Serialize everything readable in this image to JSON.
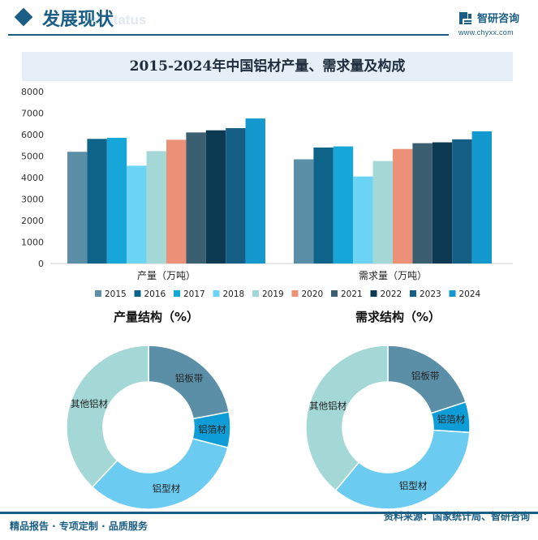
{
  "header": {
    "title": "发展现状",
    "subtitle": "ent status",
    "brand_name": "智研咨询",
    "brand_url": "www.chyxx.com"
  },
  "colors": {
    "brand": "#1a5e85",
    "banner": "#e6eef7"
  },
  "footer": {
    "left": "精品报告 · 专项定制 · 品质服务",
    "right": "资料来源：国家统计局、智研咨询"
  },
  "chart_data": [
    {
      "type": "bar",
      "title": "2015-2024年中国铝材产量、需求量及构成",
      "categories": [
        "产量（万吨）",
        "需求量（万吨）"
      ],
      "ylim": [
        0,
        8000
      ],
      "yticks": [
        0,
        1000,
        2000,
        3000,
        4000,
        5000,
        6000,
        7000,
        8000
      ],
      "grid": false,
      "legend_position": "bottom",
      "series": [
        {
          "name": "2015",
          "color": "#5b8fa8",
          "values": [
            5200,
            4850
          ]
        },
        {
          "name": "2016",
          "color": "#0e6389",
          "values": [
            5800,
            5400
          ]
        },
        {
          "name": "2017",
          "color": "#16a6d8",
          "values": [
            5850,
            5450
          ]
        },
        {
          "name": "2018",
          "color": "#6bd3f3",
          "values": [
            4550,
            4050
          ]
        },
        {
          "name": "2019",
          "color": "#a4d8d6",
          "values": [
            5230,
            4770
          ]
        },
        {
          "name": "2020",
          "color": "#ec9078",
          "values": [
            5760,
            5330
          ]
        },
        {
          "name": "2021",
          "color": "#3a5f70",
          "values": [
            6100,
            5600
          ]
        },
        {
          "name": "2022",
          "color": "#0b3a52",
          "values": [
            6200,
            5640
          ]
        },
        {
          "name": "2023",
          "color": "#155f85",
          "values": [
            6300,
            5780
          ]
        },
        {
          "name": "2024",
          "color": "#1499cf",
          "values": [
            6750,
            6150
          ]
        }
      ]
    },
    {
      "type": "pie",
      "title": "产量结构（%）",
      "donut": true,
      "slices": [
        {
          "label": "铝板带",
          "value": 22,
          "color": "#5b8fa8"
        },
        {
          "label": "铝箔材",
          "value": 7,
          "color": "#0e9dd6"
        },
        {
          "label": "铝型材",
          "value": 33,
          "color": "#6bcbf0"
        },
        {
          "label": "其他铝材",
          "value": 38,
          "color": "#a4d8d6"
        }
      ]
    },
    {
      "type": "pie",
      "title": "需求结构（%）",
      "donut": true,
      "slices": [
        {
          "label": "铝板带",
          "value": 20,
          "color": "#5b8fa8"
        },
        {
          "label": "铝箔材",
          "value": 6,
          "color": "#0e9dd6"
        },
        {
          "label": "铝型材",
          "value": 35,
          "color": "#6bcbf0"
        },
        {
          "label": "其他铝材",
          "value": 39,
          "color": "#a4d8d6"
        }
      ]
    }
  ]
}
